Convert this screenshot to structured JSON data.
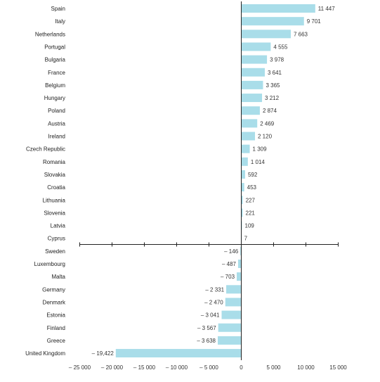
{
  "chart_data": {
    "type": "bar",
    "orientation": "horizontal",
    "bar_color": "#a9dde9",
    "categories": [
      "Spain",
      "Italy",
      "Netherlands",
      "Portugal",
      "Bulgaria",
      "France",
      "Belgium",
      "Hungary",
      "Poland",
      "Austria",
      "Ireland",
      "Czech Republic",
      "Romania",
      "Slovakia",
      "Croatia",
      "Lithuania",
      "Slovenia",
      "Latvia",
      "Cyprus",
      "Sweden",
      "Luxembourg",
      "Malta",
      "Germany",
      "Denmark",
      "Estonia",
      "Finland",
      "Greece",
      "United Kingdom"
    ],
    "values": [
      11447,
      9701,
      7663,
      4555,
      3978,
      3641,
      3365,
      3212,
      2874,
      2469,
      2120,
      1309,
      1014,
      592,
      453,
      227,
      221,
      109,
      7,
      -146,
      -487,
      -703,
      -2331,
      -2470,
      -3041,
      -3567,
      -3638,
      -19422
    ],
    "value_labels": [
      "11 447",
      "9 701",
      "7 663",
      "4 555",
      "3 978",
      "3 641",
      "3 365",
      "3 212",
      "2 874",
      "2 469",
      "2 120",
      "1 309",
      "1 014",
      "592",
      "453",
      "227",
      "221",
      "109",
      "7",
      "– 146",
      "– 487",
      "– 703",
      "– 2 331",
      "– 2 470",
      "– 3 041",
      "– 3 567",
      "– 3 638",
      "– 19,422"
    ],
    "xlim": [
      -25000,
      15000
    ],
    "ticks": [
      -25000,
      -20000,
      -15000,
      -10000,
      -5000,
      0,
      5000,
      10000,
      15000
    ],
    "tick_labels": [
      "– 25 000",
      "– 20 000",
      "– 15 000",
      "– 10 000",
      "– 5 000",
      "0",
      "5 000",
      "10 000",
      "15 000"
    ],
    "title": "",
    "xlabel": "",
    "ylabel": "",
    "grid": false
  }
}
